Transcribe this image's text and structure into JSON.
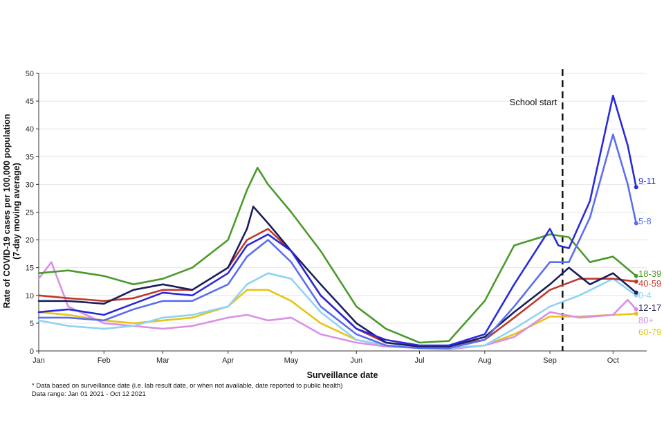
{
  "chart_data": {
    "type": "line",
    "xlabel": "Surveillance date",
    "ylabel_lines": [
      "Rate of COVID-19 cases per 100,000 population",
      "(7-day moving average)"
    ],
    "ylim": [
      0,
      50
    ],
    "yticks": [
      0,
      5,
      10,
      15,
      20,
      25,
      30,
      35,
      40,
      45,
      50
    ],
    "xlim": [
      "2021-01-01",
      "2021-10-17"
    ],
    "xticks": [
      {
        "date": "2021-01-01",
        "label": "Jan"
      },
      {
        "date": "2021-02-01",
        "label": "Feb"
      },
      {
        "date": "2021-03-01",
        "label": "Mar"
      },
      {
        "date": "2021-04-01",
        "label": "Apr"
      },
      {
        "date": "2021-05-01",
        "label": "May"
      },
      {
        "date": "2021-06-01",
        "label": "Jun"
      },
      {
        "date": "2021-07-01",
        "label": "Jul"
      },
      {
        "date": "2021-08-01",
        "label": "Aug"
      },
      {
        "date": "2021-09-01",
        "label": "Sep"
      },
      {
        "date": "2021-10-01",
        "label": "Oct"
      }
    ],
    "grid": "horizontal",
    "annotation": {
      "label": "School start",
      "date": "2021-09-07"
    },
    "series": [
      {
        "name": "60-79",
        "color": "#e6c419",
        "points": [
          [
            "2021-01-01",
            7
          ],
          [
            "2021-01-15",
            6.5
          ],
          [
            "2021-02-01",
            5.5
          ],
          [
            "2021-02-15",
            5
          ],
          [
            "2021-03-01",
            5.5
          ],
          [
            "2021-03-15",
            6
          ],
          [
            "2021-04-01",
            8
          ],
          [
            "2021-04-10",
            11
          ],
          [
            "2021-04-20",
            11
          ],
          [
            "2021-05-01",
            9
          ],
          [
            "2021-05-15",
            5
          ],
          [
            "2021-06-01",
            2
          ],
          [
            "2021-06-15",
            1
          ],
          [
            "2021-07-01",
            0.5
          ],
          [
            "2021-07-15",
            0.5
          ],
          [
            "2021-08-01",
            1
          ],
          [
            "2021-08-15",
            3
          ],
          [
            "2021-09-01",
            6.2
          ],
          [
            "2021-09-15",
            6.2
          ],
          [
            "2021-10-01",
            6.5
          ],
          [
            "2021-10-12",
            6.7
          ]
        ]
      },
      {
        "name": "80+",
        "color": "#d98fe6",
        "points": [
          [
            "2021-01-01",
            13
          ],
          [
            "2021-01-07",
            16
          ],
          [
            "2021-01-15",
            8
          ],
          [
            "2021-02-01",
            5
          ],
          [
            "2021-02-15",
            4.5
          ],
          [
            "2021-03-01",
            4
          ],
          [
            "2021-03-15",
            4.5
          ],
          [
            "2021-04-01",
            6
          ],
          [
            "2021-04-10",
            6.5
          ],
          [
            "2021-04-20",
            5.5
          ],
          [
            "2021-05-01",
            6
          ],
          [
            "2021-05-15",
            3
          ],
          [
            "2021-06-01",
            1.5
          ],
          [
            "2021-06-15",
            0.8
          ],
          [
            "2021-07-01",
            0.5
          ],
          [
            "2021-07-15",
            0.3
          ],
          [
            "2021-08-01",
            1
          ],
          [
            "2021-08-15",
            2.5
          ],
          [
            "2021-09-01",
            7
          ],
          [
            "2021-09-15",
            6
          ],
          [
            "2021-10-01",
            6.5
          ],
          [
            "2021-10-08",
            9.2
          ],
          [
            "2021-10-12",
            7.5
          ]
        ]
      },
      {
        "name": "0-4",
        "color": "#8fd3f2",
        "points": [
          [
            "2021-01-01",
            5.5
          ],
          [
            "2021-01-15",
            4.5
          ],
          [
            "2021-02-01",
            4
          ],
          [
            "2021-02-15",
            4.5
          ],
          [
            "2021-03-01",
            6
          ],
          [
            "2021-03-15",
            6.5
          ],
          [
            "2021-04-01",
            8
          ],
          [
            "2021-04-10",
            12
          ],
          [
            "2021-04-20",
            14
          ],
          [
            "2021-05-01",
            13
          ],
          [
            "2021-05-15",
            7
          ],
          [
            "2021-06-01",
            2
          ],
          [
            "2021-06-15",
            1
          ],
          [
            "2021-07-01",
            0.5
          ],
          [
            "2021-07-15",
            0.5
          ],
          [
            "2021-08-01",
            1
          ],
          [
            "2021-08-15",
            4
          ],
          [
            "2021-09-01",
            8
          ],
          [
            "2021-09-15",
            10
          ],
          [
            "2021-10-01",
            13
          ],
          [
            "2021-10-12",
            10
          ]
        ]
      },
      {
        "name": "40-59",
        "color": "#c0392b",
        "points": [
          [
            "2021-01-01",
            10
          ],
          [
            "2021-01-15",
            9.5
          ],
          [
            "2021-02-01",
            9
          ],
          [
            "2021-02-15",
            9.5
          ],
          [
            "2021-03-01",
            11
          ],
          [
            "2021-03-15",
            11
          ],
          [
            "2021-04-01",
            15
          ],
          [
            "2021-04-10",
            20
          ],
          [
            "2021-04-20",
            22
          ],
          [
            "2021-05-01",
            18
          ],
          [
            "2021-05-15",
            10
          ],
          [
            "2021-06-01",
            4
          ],
          [
            "2021-06-15",
            1.5
          ],
          [
            "2021-07-01",
            0.8
          ],
          [
            "2021-07-15",
            1
          ],
          [
            "2021-08-01",
            2
          ],
          [
            "2021-08-15",
            6
          ],
          [
            "2021-09-01",
            11
          ],
          [
            "2021-09-15",
            13
          ],
          [
            "2021-10-01",
            13
          ],
          [
            "2021-10-12",
            12.5
          ]
        ]
      },
      {
        "name": "12-17",
        "color": "#1a1f5c",
        "points": [
          [
            "2021-01-01",
            9
          ],
          [
            "2021-01-15",
            9
          ],
          [
            "2021-02-01",
            8.5
          ],
          [
            "2021-02-15",
            11
          ],
          [
            "2021-03-01",
            12
          ],
          [
            "2021-03-15",
            11
          ],
          [
            "2021-04-01",
            15
          ],
          [
            "2021-04-10",
            22
          ],
          [
            "2021-04-13",
            26
          ],
          [
            "2021-04-20",
            23
          ],
          [
            "2021-05-01",
            18
          ],
          [
            "2021-05-15",
            12
          ],
          [
            "2021-06-01",
            5
          ],
          [
            "2021-06-15",
            1.5
          ],
          [
            "2021-07-01",
            0.8
          ],
          [
            "2021-07-15",
            0.8
          ],
          [
            "2021-08-01",
            2.5
          ],
          [
            "2021-08-15",
            7
          ],
          [
            "2021-09-01",
            12
          ],
          [
            "2021-09-10",
            15
          ],
          [
            "2021-09-20",
            12
          ],
          [
            "2021-10-01",
            14
          ],
          [
            "2021-10-12",
            10.5
          ]
        ]
      },
      {
        "name": "18-39",
        "color": "#4a9a2a",
        "points": [
          [
            "2021-01-01",
            14
          ],
          [
            "2021-01-15",
            14.5
          ],
          [
            "2021-02-01",
            13.5
          ],
          [
            "2021-02-15",
            12
          ],
          [
            "2021-03-01",
            13
          ],
          [
            "2021-03-15",
            15
          ],
          [
            "2021-04-01",
            20
          ],
          [
            "2021-04-10",
            29
          ],
          [
            "2021-04-15",
            33
          ],
          [
            "2021-04-20",
            30
          ],
          [
            "2021-05-01",
            25
          ],
          [
            "2021-05-15",
            18
          ],
          [
            "2021-06-01",
            8
          ],
          [
            "2021-06-15",
            4
          ],
          [
            "2021-07-01",
            1.5
          ],
          [
            "2021-07-15",
            1.8
          ],
          [
            "2021-08-01",
            9
          ],
          [
            "2021-08-15",
            19
          ],
          [
            "2021-09-01",
            21
          ],
          [
            "2021-09-10",
            20.5
          ],
          [
            "2021-09-20",
            16
          ],
          [
            "2021-10-01",
            17
          ],
          [
            "2021-10-12",
            13.5
          ]
        ]
      },
      {
        "name": "5-8",
        "color": "#5b6ef0",
        "points": [
          [
            "2021-01-01",
            6
          ],
          [
            "2021-01-15",
            6
          ],
          [
            "2021-02-01",
            5.5
          ],
          [
            "2021-02-15",
            7.5
          ],
          [
            "2021-03-01",
            9
          ],
          [
            "2021-03-15",
            9
          ],
          [
            "2021-04-01",
            12
          ],
          [
            "2021-04-10",
            17
          ],
          [
            "2021-04-20",
            20
          ],
          [
            "2021-05-01",
            16
          ],
          [
            "2021-05-15",
            8
          ],
          [
            "2021-06-01",
            3
          ],
          [
            "2021-06-15",
            1
          ],
          [
            "2021-07-01",
            0.5
          ],
          [
            "2021-07-15",
            0.5
          ],
          [
            "2021-08-01",
            2
          ],
          [
            "2021-08-15",
            8
          ],
          [
            "2021-09-01",
            16
          ],
          [
            "2021-09-10",
            16
          ],
          [
            "2021-09-20",
            24
          ],
          [
            "2021-10-01",
            39
          ],
          [
            "2021-10-08",
            30
          ],
          [
            "2021-10-12",
            23
          ]
        ]
      },
      {
        "name": "9-11",
        "color": "#2a2adc",
        "points": [
          [
            "2021-01-01",
            7
          ],
          [
            "2021-01-15",
            7.5
          ],
          [
            "2021-02-01",
            6.5
          ],
          [
            "2021-02-15",
            8.5
          ],
          [
            "2021-03-01",
            10.5
          ],
          [
            "2021-03-15",
            10
          ],
          [
            "2021-04-01",
            14
          ],
          [
            "2021-04-10",
            19
          ],
          [
            "2021-04-20",
            21
          ],
          [
            "2021-05-01",
            18
          ],
          [
            "2021-05-15",
            10
          ],
          [
            "2021-06-01",
            4
          ],
          [
            "2021-06-15",
            2
          ],
          [
            "2021-07-01",
            1
          ],
          [
            "2021-07-15",
            1
          ],
          [
            "2021-08-01",
            3
          ],
          [
            "2021-08-15",
            12
          ],
          [
            "2021-09-01",
            22
          ],
          [
            "2021-09-05",
            19
          ],
          [
            "2021-09-10",
            18.5
          ],
          [
            "2021-09-20",
            27
          ],
          [
            "2021-10-01",
            46
          ],
          [
            "2021-10-08",
            37
          ],
          [
            "2021-10-12",
            29.5
          ]
        ]
      }
    ]
  },
  "footnotes": {
    "line1": "* Data based on surveillance date (i.e. lab result date, or when not available, date reported to public health)",
    "line2": "Data range: Jan 01 2021 - Oct 12 2021"
  }
}
